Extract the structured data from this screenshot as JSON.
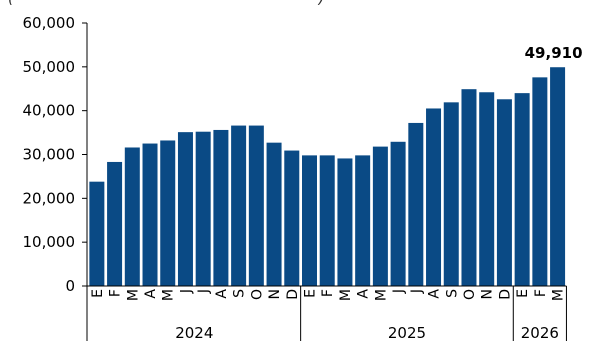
{
  "header_fragment": "(",
  "header_fragment_right": ")",
  "chart_data": {
    "type": "bar",
    "title": "",
    "xlabel": "",
    "ylabel": "",
    "ylim": [
      0,
      60000
    ],
    "y_ticks": [
      "0",
      "10,000",
      "20,000",
      "30,000",
      "40,000",
      "50,000",
      "60,000"
    ],
    "grid": false,
    "bar_color": "#0a4a85",
    "categories": [
      "E",
      "F",
      "M",
      "A",
      "M",
      "J",
      "J",
      "A",
      "S",
      "O",
      "N",
      "D",
      "E",
      "F",
      "M",
      "A",
      "M",
      "J",
      "J",
      "A",
      "S",
      "O",
      "N",
      "D",
      "E",
      "F",
      "M"
    ],
    "values": [
      23800,
      28300,
      31600,
      32500,
      33200,
      35100,
      35200,
      35600,
      36600,
      36600,
      32700,
      30900,
      29800,
      29800,
      29100,
      29800,
      31800,
      32900,
      37200,
      40500,
      41900,
      44900,
      44200,
      42600,
      44000,
      47600,
      49910
    ],
    "year_groups": [
      {
        "label": "2024",
        "count": 12
      },
      {
        "label": "2025",
        "count": 12
      },
      {
        "label": "2026",
        "count": 3
      }
    ],
    "annotation": {
      "text": "49,910",
      "index": 26
    }
  }
}
